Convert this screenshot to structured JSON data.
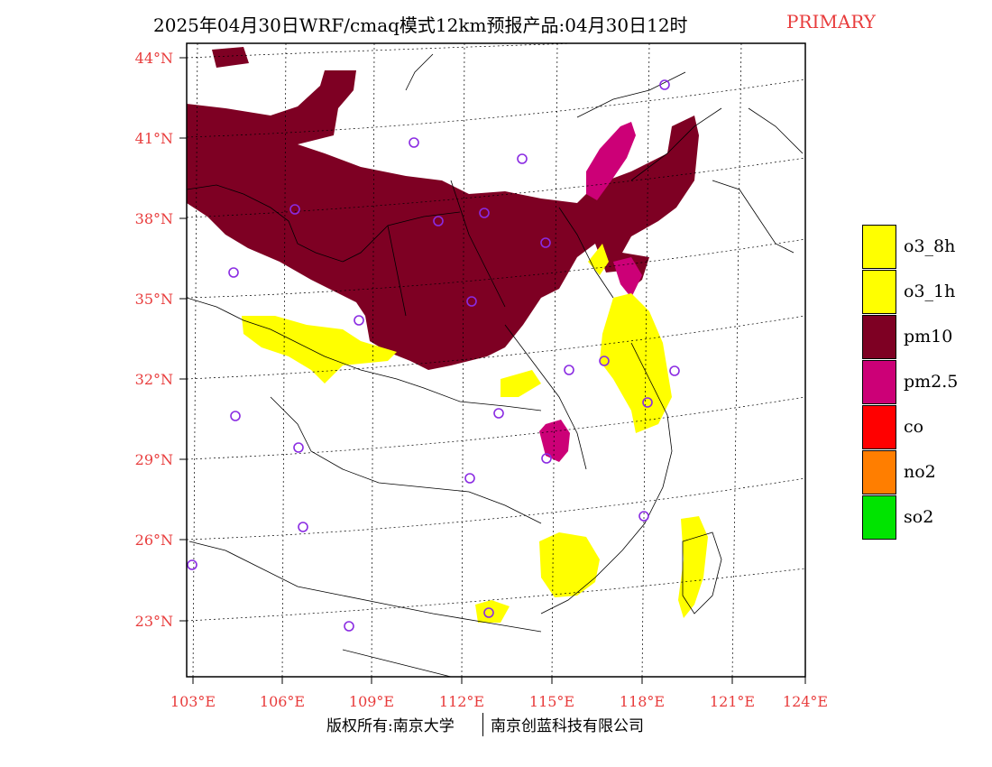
{
  "title": {
    "main": "2025年04月30日WRF/cmaq模式12km预报产品:04月30日12时",
    "tag": "PRIMARY"
  },
  "map": {
    "lat_labels": [
      "44°N",
      "41°N",
      "38°N",
      "35°N",
      "32°N",
      "29°N",
      "26°N",
      "23°N"
    ],
    "lon_labels": [
      "103°E",
      "106°E",
      "109°E",
      "112°E",
      "115°E",
      "118°E",
      "121°E",
      "124°E"
    ],
    "tick_color": "#e83c3c",
    "station_marker_color": "#8a2be2"
  },
  "legend": {
    "items": [
      {
        "label": "o3_8h",
        "color": "#ffff00"
      },
      {
        "label": "o3_1h",
        "color": "#ffff00"
      },
      {
        "label": "pm10",
        "color": "#7e0023"
      },
      {
        "label": "pm2.5",
        "color": "#cc0077"
      },
      {
        "label": "co",
        "color": "#ff0000"
      },
      {
        "label": "no2",
        "color": "#ff7e00"
      },
      {
        "label": "so2",
        "color": "#00e400"
      }
    ]
  },
  "footer": {
    "left": "版权所有:南京大学",
    "right": "南京创蓝科技有限公司"
  }
}
